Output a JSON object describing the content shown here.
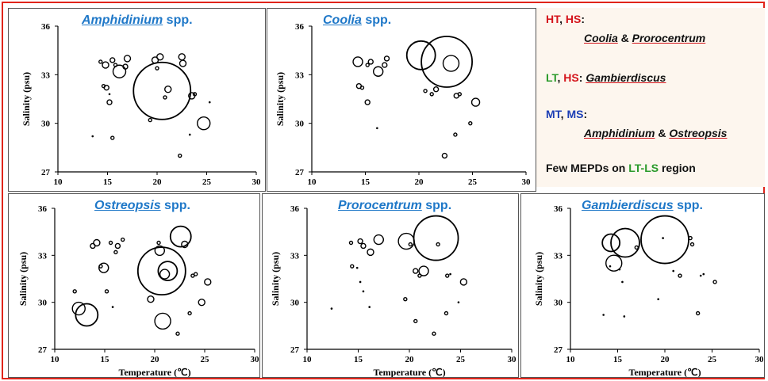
{
  "chart_data": [
    {
      "type": "scatter",
      "title_genus": "Amphidinium",
      "title_suffix": "spp.",
      "ylabel": "Salinity (psu)",
      "xlabel": "",
      "xlim": [
        10,
        30
      ],
      "ylim": [
        27,
        36
      ],
      "xticks": [
        "10",
        "15",
        "20",
        "25",
        "30"
      ],
      "yticks": [
        "27",
        "30",
        "33",
        "36"
      ],
      "points": [
        [
          14.3,
          33.8,
          2
        ],
        [
          14.8,
          33.6,
          4
        ],
        [
          15.5,
          33.9,
          3
        ],
        [
          16.2,
          33.2,
          8
        ],
        [
          15.8,
          33.6,
          2
        ],
        [
          17,
          34,
          4
        ],
        [
          16.8,
          33.5,
          3
        ],
        [
          14.6,
          32.3,
          2
        ],
        [
          14.9,
          32.2,
          3
        ],
        [
          15.2,
          31.3,
          3
        ],
        [
          15.2,
          31.8,
          1
        ],
        [
          19.8,
          33.9,
          4
        ],
        [
          20.3,
          34.1,
          4
        ],
        [
          20,
          33.4,
          2
        ],
        [
          20.5,
          32,
          36
        ],
        [
          21.1,
          32.1,
          4
        ],
        [
          20.8,
          31.6,
          2
        ],
        [
          22.5,
          34.1,
          4
        ],
        [
          22.6,
          33.7,
          4
        ],
        [
          23.5,
          31.7,
          4
        ],
        [
          23.8,
          31.8,
          2
        ],
        [
          25.3,
          31.3,
          1
        ],
        [
          24.7,
          30,
          8
        ],
        [
          19.3,
          30.2,
          2
        ],
        [
          23.3,
          29.3,
          1
        ],
        [
          13.5,
          29.2,
          1
        ],
        [
          15.5,
          29.1,
          2
        ],
        [
          22.3,
          28,
          2
        ]
      ]
    },
    {
      "type": "scatter",
      "title_genus": "Coolia",
      "title_suffix": "spp.",
      "ylabel": "Salinity (psu)",
      "xlabel": "",
      "xlim": [
        10,
        30
      ],
      "ylim": [
        27,
        36
      ],
      "xticks": [
        "10",
        "15",
        "20",
        "25",
        "30"
      ],
      "yticks": [
        "27",
        "30",
        "33",
        "36"
      ],
      "points": [
        [
          14.3,
          33.8,
          6
        ],
        [
          15.2,
          33.6,
          2
        ],
        [
          15.5,
          33.8,
          3
        ],
        [
          16.2,
          33.2,
          6
        ],
        [
          16.8,
          33.6,
          3
        ],
        [
          17,
          34,
          3
        ],
        [
          14.4,
          32.3,
          3
        ],
        [
          14.7,
          32.2,
          2
        ],
        [
          15.2,
          31.3,
          3
        ],
        [
          16.1,
          29.7,
          1
        ],
        [
          20.2,
          34.2,
          18
        ],
        [
          22.6,
          33.8,
          32
        ],
        [
          23,
          33.7,
          10
        ],
        [
          20.6,
          32,
          2
        ],
        [
          21.2,
          31.8,
          2
        ],
        [
          21.6,
          32.1,
          3
        ],
        [
          23.5,
          31.7,
          3
        ],
        [
          23.8,
          31.8,
          2
        ],
        [
          25.3,
          31.3,
          5
        ],
        [
          24.8,
          30,
          2
        ],
        [
          23.4,
          29.3,
          2
        ],
        [
          22.4,
          28,
          3
        ]
      ]
    },
    {
      "type": "scatter",
      "title_genus": "Ostreopsis",
      "title_suffix": "spp.",
      "ylabel": "Salinity (psu)",
      "xlabel": "",
      "xlim": [
        10,
        30
      ],
      "ylim": [
        27,
        36
      ],
      "xticks": [
        "10",
        "15",
        "20",
        "25",
        "30"
      ],
      "yticks": [
        "27",
        "30",
        "33",
        "36"
      ],
      "points": [
        [
          12,
          30.7,
          2
        ],
        [
          12.4,
          29.6,
          8
        ],
        [
          13.2,
          29.2,
          14
        ],
        [
          13.8,
          33.6,
          3
        ],
        [
          14.2,
          33.8,
          4
        ],
        [
          14.9,
          32.2,
          6
        ],
        [
          14.6,
          32.3,
          2
        ],
        [
          15.2,
          30.7,
          2
        ],
        [
          15.6,
          33.8,
          2
        ],
        [
          16.1,
          33.2,
          2
        ],
        [
          16.3,
          33.6,
          3
        ],
        [
          16.8,
          34,
          2
        ],
        [
          15.8,
          29.7,
          1
        ],
        [
          19.6,
          30.2,
          4
        ],
        [
          20.4,
          33.8,
          2
        ],
        [
          20.5,
          33.3,
          6
        ],
        [
          20.7,
          32,
          30
        ],
        [
          21.3,
          32,
          12
        ],
        [
          21,
          31.8,
          6
        ],
        [
          20.8,
          28.8,
          10
        ],
        [
          22.6,
          34.2,
          13
        ],
        [
          23,
          33.7,
          4
        ],
        [
          23.8,
          31.7,
          2
        ],
        [
          24.1,
          31.8,
          2
        ],
        [
          25.3,
          31.3,
          4
        ],
        [
          24.7,
          30,
          4
        ],
        [
          23.5,
          29.3,
          2
        ],
        [
          22.3,
          28,
          2
        ]
      ]
    },
    {
      "type": "scatter",
      "title_genus": "Prorocentrum",
      "title_suffix": "spp.",
      "ylabel": "Salinity (psu)",
      "xlabel": "",
      "xlim": [
        10,
        30
      ],
      "ylim": [
        27,
        36
      ],
      "xticks": [
        "10",
        "15",
        "20",
        "25",
        "30"
      ],
      "yticks": [
        "27",
        "30",
        "33",
        "36"
      ],
      "points": [
        [
          12.4,
          29.6,
          1
        ],
        [
          14.3,
          33.8,
          2
        ],
        [
          15.2,
          33.9,
          3
        ],
        [
          15.5,
          33.6,
          3
        ],
        [
          16.2,
          33.2,
          4
        ],
        [
          17,
          34,
          6
        ],
        [
          14.4,
          32.3,
          2
        ],
        [
          14.9,
          32.2,
          1
        ],
        [
          15.2,
          31.3,
          1
        ],
        [
          15.5,
          30.7,
          1
        ],
        [
          16.1,
          29.7,
          1
        ],
        [
          19.7,
          33.9,
          10
        ],
        [
          20.1,
          33.7,
          2
        ],
        [
          19.6,
          30.2,
          2
        ],
        [
          20.6,
          32,
          3
        ],
        [
          21.4,
          32,
          6
        ],
        [
          21,
          31.7,
          2
        ],
        [
          22.6,
          34.1,
          28
        ],
        [
          22.8,
          33.7,
          2
        ],
        [
          23.7,
          31.7,
          2
        ],
        [
          24,
          31.8,
          1
        ],
        [
          25.3,
          31.3,
          4
        ],
        [
          24.8,
          30,
          1
        ],
        [
          20.6,
          28.8,
          2
        ],
        [
          23.6,
          29.3,
          2
        ],
        [
          22.4,
          28,
          2
        ]
      ]
    },
    {
      "type": "scatter",
      "title_genus": "Gambierdiscus",
      "title_suffix": "spp.",
      "ylabel": "Salinity (psu)",
      "xlabel": "",
      "xlim": [
        10,
        30
      ],
      "ylim": [
        27,
        36
      ],
      "xticks": [
        "10",
        "15",
        "20",
        "25",
        "30"
      ],
      "yticks": [
        "27",
        "30",
        "33",
        "36"
      ],
      "points": [
        [
          14.3,
          33.8,
          11
        ],
        [
          15.8,
          33.8,
          18
        ],
        [
          14.6,
          32.5,
          10
        ],
        [
          14.2,
          32.3,
          1
        ],
        [
          15.2,
          32.1,
          1
        ],
        [
          15.5,
          31.3,
          1
        ],
        [
          17,
          33.5,
          2
        ],
        [
          20,
          34,
          30
        ],
        [
          19.8,
          34.1,
          1
        ],
        [
          22.7,
          34.1,
          2
        ],
        [
          22.9,
          33.7,
          2
        ],
        [
          20.9,
          32,
          1
        ],
        [
          21.6,
          31.7,
          2
        ],
        [
          23.8,
          31.7,
          1
        ],
        [
          24.1,
          31.8,
          1
        ],
        [
          25.3,
          31.3,
          2
        ],
        [
          13.5,
          29.2,
          1
        ],
        [
          15.7,
          29.1,
          1
        ],
        [
          19.3,
          30.2,
          1
        ],
        [
          23.5,
          29.3,
          2
        ]
      ]
    }
  ],
  "panels": [
    {
      "xlabel": "",
      "show_ylabel": true
    },
    {
      "xlabel": "",
      "show_ylabel": true
    },
    {
      "xlabel": "Temperature (℃)",
      "show_ylabel": true
    },
    {
      "xlabel": "Temperature (℃)",
      "show_ylabel": true
    },
    {
      "xlabel": "Temperature (℃)",
      "show_ylabel": true
    }
  ],
  "legend": {
    "line1_a": "HT",
    "line1_b": ", ",
    "line1_c": "HS",
    "line1_d": ":",
    "line2_a": "Coolia",
    "line2_b": " & ",
    "line2_c": "Prorocentrum",
    "line3_a": "LT",
    "line3_b": ", ",
    "line3_c": "HS",
    "line3_d": ": ",
    "line3_e": "Gambierdiscus",
    "line4_a": "MT",
    "line4_b": ", ",
    "line4_c": "MS",
    "line4_d": ":",
    "line5_a": "Amphidinium",
    "line5_b": " & ",
    "line5_c": "Ostreopsis",
    "line6_a": "Few MEPDs on ",
    "line6_b": "LT-LS",
    "line6_c": " region"
  },
  "colors": {
    "frame": "#e0251b",
    "title": "#1f78c8",
    "red": "#d4141b",
    "green": "#2a9a2a",
    "blue": "#1d3fb5"
  }
}
